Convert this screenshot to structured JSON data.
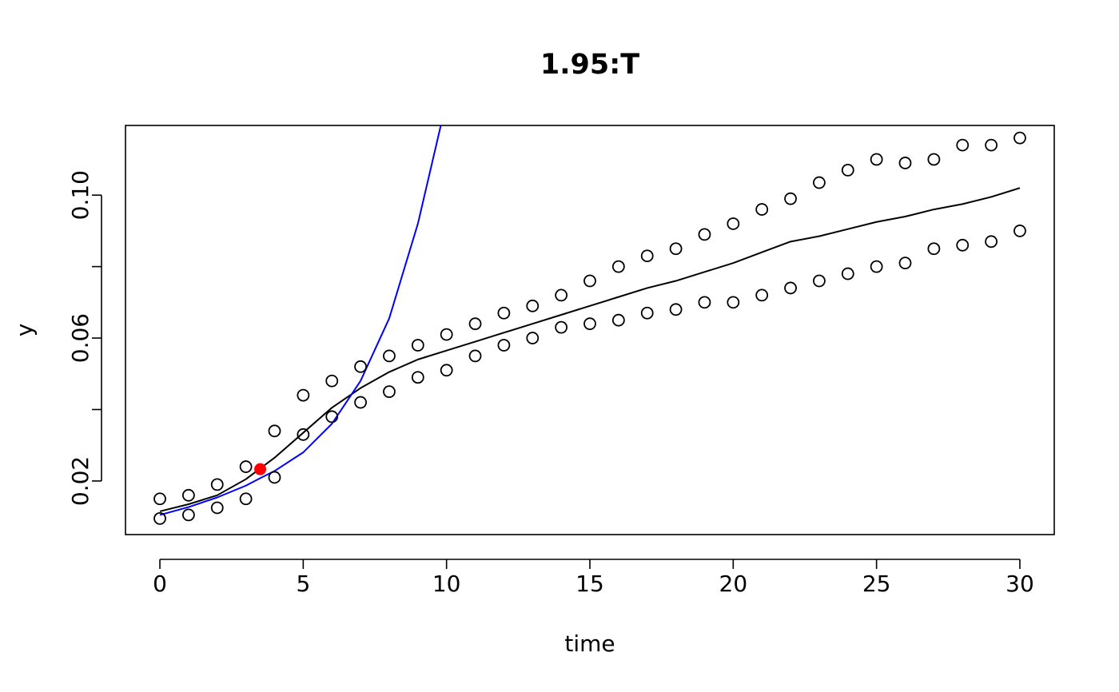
{
  "chart_data": {
    "type": "scatter",
    "title": "1.95:T",
    "xlabel": "time",
    "ylabel": "y",
    "xlim": [
      -1.2,
      31.2
    ],
    "ylim": [
      0.005,
      0.1195
    ],
    "x_ticks": [
      0,
      5,
      10,
      15,
      20,
      25,
      30
    ],
    "x_tick_labels": [
      "0",
      "5",
      "10",
      "15",
      "20",
      "25",
      "30"
    ],
    "y_ticks": [
      0.02,
      0.04,
      0.06,
      0.08,
      0.1
    ],
    "y_tick_labels": [
      "0.02",
      "",
      "0.06",
      "",
      "0.10"
    ],
    "grid": false,
    "colors": {
      "points": "#000000",
      "smooth_line": "#000000",
      "exp_fit_line": "#0000ff",
      "highlight_point": "#ff0000"
    },
    "series": [
      {
        "role": "observations",
        "style": "open-circle",
        "points": [
          [
            0,
            0.015
          ],
          [
            0,
            0.0095
          ],
          [
            1,
            0.016
          ],
          [
            1,
            0.0105
          ],
          [
            2,
            0.019
          ],
          [
            2,
            0.0125
          ],
          [
            3,
            0.024
          ],
          [
            3,
            0.015
          ],
          [
            4,
            0.034
          ],
          [
            4,
            0.021
          ],
          [
            5,
            0.044
          ],
          [
            5,
            0.033
          ],
          [
            6,
            0.048
          ],
          [
            6,
            0.038
          ],
          [
            7,
            0.052
          ],
          [
            7,
            0.042
          ],
          [
            8,
            0.055
          ],
          [
            8,
            0.045
          ],
          [
            9,
            0.058
          ],
          [
            9,
            0.049
          ],
          [
            10,
            0.061
          ],
          [
            10,
            0.051
          ],
          [
            11,
            0.064
          ],
          [
            11,
            0.055
          ],
          [
            12,
            0.067
          ],
          [
            12,
            0.058
          ],
          [
            13,
            0.069
          ],
          [
            13,
            0.06
          ],
          [
            14,
            0.072
          ],
          [
            14,
            0.063
          ],
          [
            15,
            0.076
          ],
          [
            15,
            0.064
          ],
          [
            16,
            0.08
          ],
          [
            16,
            0.065
          ],
          [
            17,
            0.083
          ],
          [
            17,
            0.067
          ],
          [
            18,
            0.085
          ],
          [
            18,
            0.068
          ],
          [
            19,
            0.089
          ],
          [
            19,
            0.07
          ],
          [
            20,
            0.092
          ],
          [
            20,
            0.07
          ],
          [
            21,
            0.096
          ],
          [
            21,
            0.072
          ],
          [
            22,
            0.099
          ],
          [
            22,
            0.074
          ],
          [
            23,
            0.1035
          ],
          [
            23,
            0.076
          ],
          [
            24,
            0.107
          ],
          [
            24,
            0.078
          ],
          [
            25,
            0.11
          ],
          [
            25,
            0.08
          ],
          [
            26,
            0.109
          ],
          [
            26,
            0.081
          ],
          [
            27,
            0.11
          ],
          [
            27,
            0.085
          ],
          [
            28,
            0.114
          ],
          [
            28,
            0.086
          ],
          [
            29,
            0.114
          ],
          [
            29,
            0.087
          ],
          [
            30,
            0.116
          ],
          [
            30,
            0.09
          ]
        ]
      },
      {
        "role": "smoothed-fit",
        "style": "line",
        "points": [
          [
            0,
            0.0115
          ],
          [
            1,
            0.0135
          ],
          [
            2,
            0.016
          ],
          [
            3,
            0.0205
          ],
          [
            4,
            0.0265
          ],
          [
            5,
            0.0335
          ],
          [
            6,
            0.0405
          ],
          [
            7,
            0.046
          ],
          [
            8,
            0.0505
          ],
          [
            9,
            0.054
          ],
          [
            10,
            0.0565
          ],
          [
            11,
            0.059
          ],
          [
            12,
            0.0615
          ],
          [
            13,
            0.064
          ],
          [
            14,
            0.0665
          ],
          [
            15,
            0.069
          ],
          [
            16,
            0.0715
          ],
          [
            17,
            0.074
          ],
          [
            18,
            0.076
          ],
          [
            19,
            0.0785
          ],
          [
            20,
            0.081
          ],
          [
            21,
            0.084
          ],
          [
            22,
            0.087
          ],
          [
            23,
            0.0885
          ],
          [
            24,
            0.0905
          ],
          [
            25,
            0.0925
          ],
          [
            26,
            0.094
          ],
          [
            27,
            0.096
          ],
          [
            28,
            0.0975
          ],
          [
            29,
            0.0995
          ],
          [
            30,
            0.102
          ]
        ]
      },
      {
        "role": "exponential-fit",
        "style": "line",
        "points": [
          [
            0,
            0.0105
          ],
          [
            1,
            0.0127
          ],
          [
            2,
            0.0154
          ],
          [
            3,
            0.0187
          ],
          [
            3.5,
            0.0208
          ],
          [
            4,
            0.0228
          ],
          [
            5,
            0.028
          ],
          [
            6,
            0.036
          ],
          [
            7,
            0.048
          ],
          [
            8,
            0.0655
          ],
          [
            9,
            0.092
          ],
          [
            9.8,
            0.1195
          ]
        ]
      },
      {
        "role": "highlighted-point",
        "style": "filled-circle",
        "points": [
          [
            3.5,
            0.0233
          ]
        ]
      }
    ]
  }
}
